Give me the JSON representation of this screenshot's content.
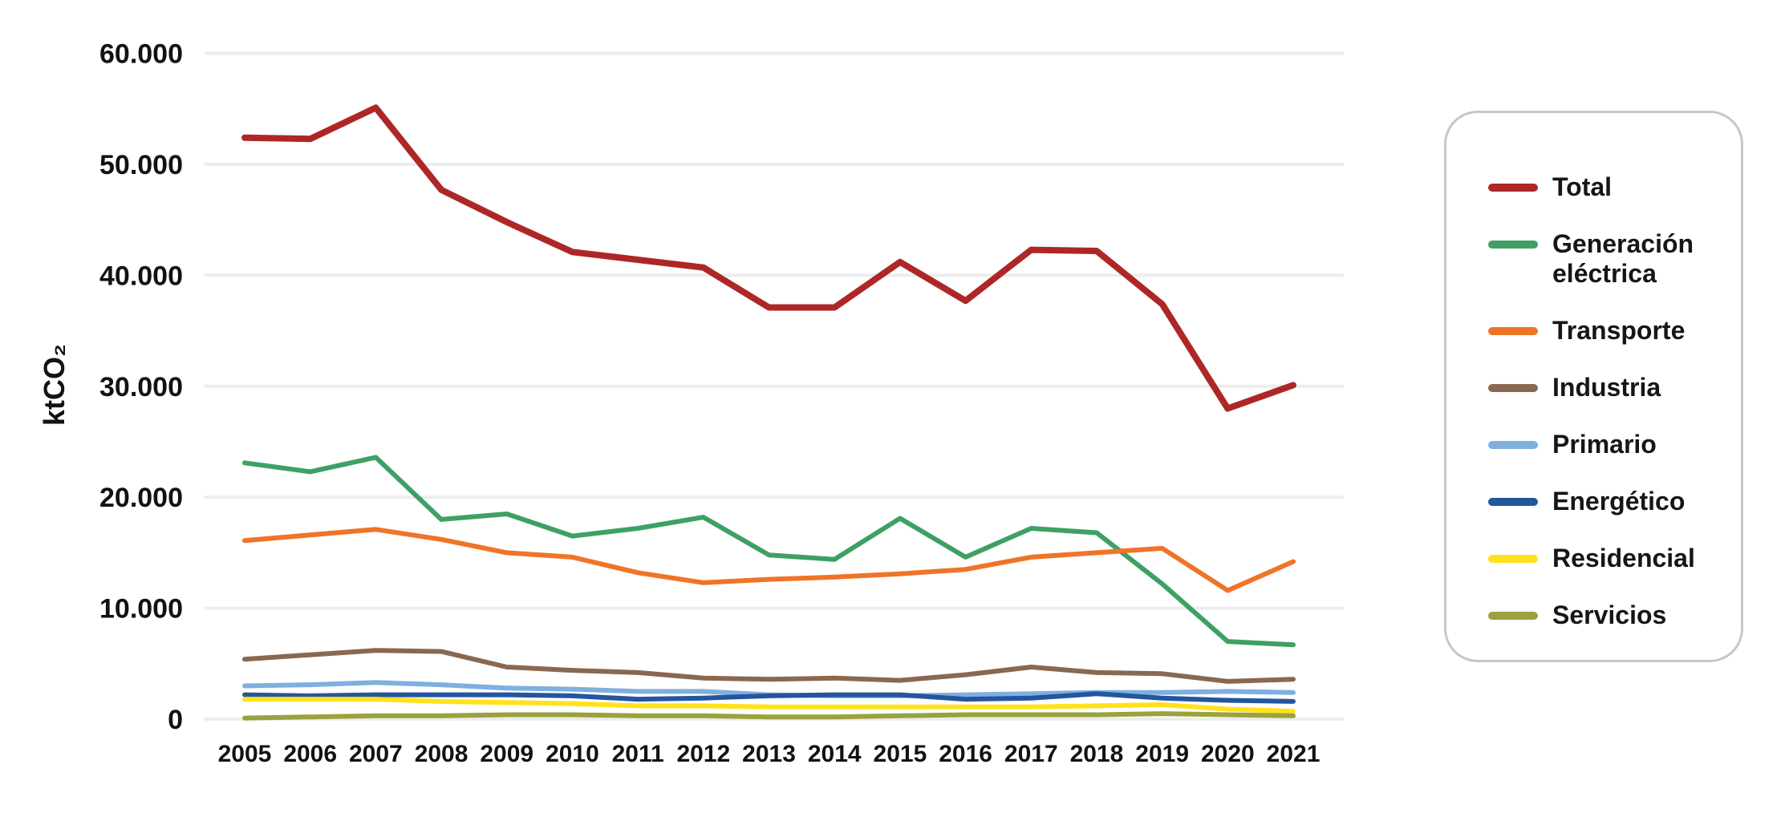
{
  "page": {
    "background": "#ffffff",
    "text_color": "#121212",
    "gridline_color": "#ededed",
    "legend_border_color": "#c7c7c7"
  },
  "chart_data": {
    "type": "line",
    "title": "",
    "xlabel": "",
    "ylabel": "ktCO₂",
    "ylim": [
      0,
      62000
    ],
    "grid": "horizontal-only",
    "legend_position": "right",
    "x_labels": [
      "2005",
      "2006",
      "2007",
      "2008",
      "2009",
      "2010",
      "2011",
      "2012",
      "2013",
      "2014",
      "2015",
      "2016",
      "2017",
      "2018",
      "2019",
      "2020",
      "2021"
    ],
    "y_ticks": [
      {
        "label": "60.000",
        "value": 60000
      },
      {
        "label": "50.000",
        "value": 50000
      },
      {
        "label": "40.000",
        "value": 40000
      },
      {
        "label": "30.000",
        "value": 30000
      },
      {
        "label": "20.000",
        "value": 20000
      },
      {
        "label": "10.000",
        "value": 10000
      },
      {
        "label": "0",
        "value": 0
      }
    ],
    "series": [
      {
        "name": "Total",
        "color": "#ae2727",
        "line_width": 8,
        "values": [
          52400,
          52300,
          55100,
          47700,
          44800,
          42100,
          41400,
          40700,
          37100,
          37100,
          41200,
          37700,
          42300,
          42200,
          37400,
          28000,
          30100
        ]
      },
      {
        "name": "Generación eléctrica",
        "color": "#3fa065",
        "line_width": 6,
        "values": [
          23100,
          22300,
          23600,
          18000,
          18500,
          16500,
          17200,
          18200,
          14800,
          14400,
          18100,
          14600,
          17200,
          16800,
          12200,
          7000,
          6700
        ]
      },
      {
        "name": "Transporte",
        "color": "#ef7428",
        "line_width": 6,
        "values": [
          16100,
          16600,
          17100,
          16200,
          15000,
          14600,
          13200,
          12300,
          12600,
          12800,
          13100,
          13500,
          14600,
          15000,
          15400,
          11600,
          14200
        ]
      },
      {
        "name": "Industria",
        "color": "#8a6850",
        "line_width": 6,
        "values": [
          5400,
          5800,
          6200,
          6100,
          4700,
          4400,
          4200,
          3700,
          3600,
          3700,
          3500,
          4000,
          4700,
          4200,
          4100,
          3400,
          3600
        ]
      },
      {
        "name": "Primario",
        "color": "#7fafdf",
        "line_width": 6,
        "values": [
          3000,
          3100,
          3300,
          3100,
          2800,
          2700,
          2500,
          2500,
          2200,
          2100,
          2100,
          2200,
          2300,
          2400,
          2400,
          2500,
          2400
        ]
      },
      {
        "name": "Energético",
        "color": "#24569e",
        "line_width": 6,
        "values": [
          2200,
          2100,
          2200,
          2200,
          2200,
          2100,
          1800,
          1900,
          2100,
          2200,
          2200,
          1800,
          1900,
          2300,
          1900,
          1700,
          1600
        ]
      },
      {
        "name": "Residencial",
        "color": "#ffe21b",
        "line_width": 6,
        "values": [
          1800,
          1800,
          1800,
          1600,
          1500,
          1400,
          1200,
          1200,
          1100,
          1100,
          1100,
          1100,
          1100,
          1200,
          1300,
          900,
          700
        ]
      },
      {
        "name": "Servicios",
        "color": "#9aa23e",
        "line_width": 6,
        "values": [
          100,
          200,
          300,
          300,
          400,
          400,
          300,
          300,
          200,
          200,
          300,
          400,
          400,
          400,
          500,
          400,
          300
        ]
      }
    ]
  }
}
